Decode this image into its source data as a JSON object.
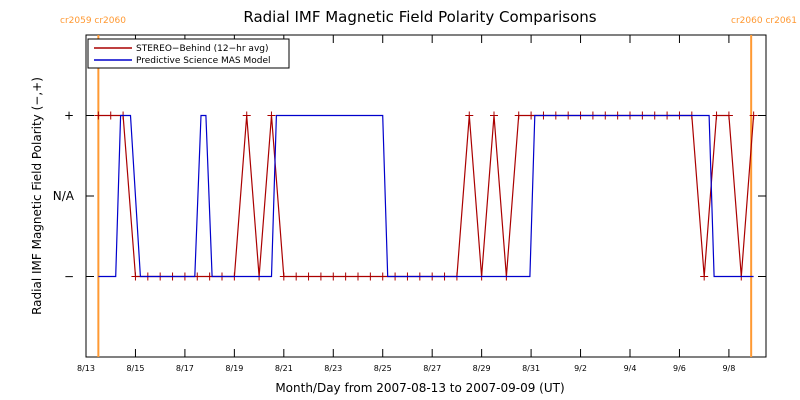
{
  "colors": {
    "stereo": "#aa0000",
    "model": "#0000cc",
    "rotation_marker": "#ff9933",
    "axis": "#000000",
    "background": "#ffffff"
  },
  "chart_data": {
    "type": "line",
    "title": "Radial IMF Magnetic Field Polarity Comparisons",
    "xlabel": "Month/Day from 2007-08-13 to 2007-09-09 (UT)",
    "ylabel": "Radial IMF Magnetic Field Polarity (−,+)",
    "x_unit": "days since 2007-08-13 00:00 UT",
    "xlim": [
      0,
      27.5
    ],
    "ylim": [
      -2,
      2
    ],
    "grid": false,
    "legend_position": "top-left",
    "x_ticks": [
      {
        "value": 0,
        "label": "8/13"
      },
      {
        "value": 2,
        "label": "8/15"
      },
      {
        "value": 4,
        "label": "8/17"
      },
      {
        "value": 6,
        "label": "8/19"
      },
      {
        "value": 8,
        "label": "8/21"
      },
      {
        "value": 10,
        "label": "8/23"
      },
      {
        "value": 12,
        "label": "8/25"
      },
      {
        "value": 14,
        "label": "8/27"
      },
      {
        "value": 16,
        "label": "8/29"
      },
      {
        "value": 18,
        "label": "8/31"
      },
      {
        "value": 20,
        "label": "9/2"
      },
      {
        "value": 22,
        "label": "9/4"
      },
      {
        "value": 24,
        "label": "9/6"
      },
      {
        "value": 26,
        "label": "9/8"
      }
    ],
    "y_ticks": [
      {
        "value": 1,
        "label": "+"
      },
      {
        "value": 0,
        "label": "N/A"
      },
      {
        "value": -1,
        "label": "−"
      }
    ],
    "rotation_markers": [
      {
        "x": 0.5,
        "label": "cr2059 cr2060"
      },
      {
        "x": 26.9,
        "label": "cr2060 cr2061"
      }
    ],
    "series": [
      {
        "name": "STEREO−Behind (12−hr avg)",
        "color": "#aa0000",
        "marker": "plus",
        "x": [
          0.5,
          1.0,
          1.5,
          2.0,
          2.5,
          3.0,
          3.5,
          4.0,
          4.5,
          5.0,
          5.5,
          6.0,
          6.5,
          7.0,
          7.5,
          8.0,
          8.5,
          9.0,
          9.5,
          10.0,
          10.5,
          11.0,
          11.5,
          12.0,
          12.5,
          13.0,
          13.5,
          14.0,
          14.5,
          15.0,
          15.5,
          16.0,
          16.5,
          17.0,
          17.5,
          18.0,
          18.5,
          19.0,
          19.5,
          20.0,
          20.5,
          21.0,
          21.5,
          22.0,
          22.5,
          23.0,
          23.5,
          24.0,
          24.5,
          25.0,
          25.5,
          26.0,
          26.5,
          27.0
        ],
        "y": [
          1,
          1,
          1,
          -1,
          -1,
          -1,
          -1,
          -1,
          -1,
          -1,
          -1,
          -1,
          1,
          -1,
          1,
          -1,
          -1,
          -1,
          -1,
          -1,
          -1,
          -1,
          -1,
          -1,
          -1,
          -1,
          -1,
          -1,
          -1,
          -1,
          1,
          -1,
          1,
          -1,
          1,
          1,
          1,
          1,
          1,
          1,
          1,
          1,
          1,
          1,
          1,
          1,
          1,
          1,
          1,
          -1,
          1,
          1,
          -1,
          1
        ]
      },
      {
        "name": "Predictive Science MAS Model",
        "color": "#0000cc",
        "marker": "none",
        "x": [
          0.5,
          1.2,
          1.4,
          1.8,
          2.2,
          2.4,
          4.4,
          4.65,
          4.85,
          5.1,
          7.5,
          7.7,
          12.0,
          12.2,
          17.95,
          18.15,
          25.2,
          25.4,
          27.0
        ],
        "y": [
          -1,
          -1,
          1,
          1,
          -1,
          -1,
          -1,
          1,
          1,
          -1,
          -1,
          1,
          1,
          -1,
          -1,
          1,
          1,
          -1,
          -1
        ]
      }
    ]
  }
}
